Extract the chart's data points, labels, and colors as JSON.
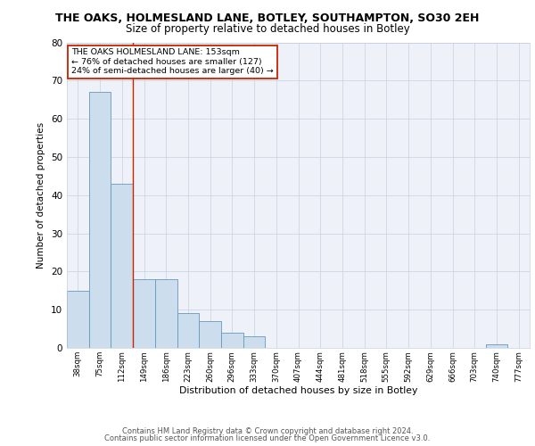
{
  "title_main": "THE OAKS, HOLMESLAND LANE, BOTLEY, SOUTHAMPTON, SO30 2EH",
  "title_sub": "Size of property relative to detached houses in Botley",
  "xlabel": "Distribution of detached houses by size in Botley",
  "ylabel": "Number of detached properties",
  "bins": [
    "38sqm",
    "75sqm",
    "112sqm",
    "149sqm",
    "186sqm",
    "223sqm",
    "260sqm",
    "296sqm",
    "333sqm",
    "370sqm",
    "407sqm",
    "444sqm",
    "481sqm",
    "518sqm",
    "555sqm",
    "592sqm",
    "629sqm",
    "666sqm",
    "703sqm",
    "740sqm",
    "777sqm"
  ],
  "values": [
    15,
    67,
    43,
    18,
    18,
    9,
    7,
    4,
    3,
    0,
    0,
    0,
    0,
    0,
    0,
    0,
    0,
    0,
    0,
    1,
    0
  ],
  "bar_color": "#ccdded",
  "bar_edge_color": "#6699bb",
  "property_line_x": 2.5,
  "annotation_line1": "THE OAKS HOLMESLAND LANE: 153sqm",
  "annotation_line2": "← 76% of detached houses are smaller (127)",
  "annotation_line3": "24% of semi-detached houses are larger (40) →",
  "ylim": [
    0,
    80
  ],
  "yticks": [
    0,
    10,
    20,
    30,
    40,
    50,
    60,
    70,
    80
  ],
  "footer1": "Contains HM Land Registry data © Crown copyright and database right 2024.",
  "footer2": "Contains public sector information licensed under the Open Government Licence v3.0.",
  "plot_bg_color": "#eef2f8",
  "grid_color": "#c5d0e0",
  "title_fontsize": 9,
  "subtitle_fontsize": 8.5
}
